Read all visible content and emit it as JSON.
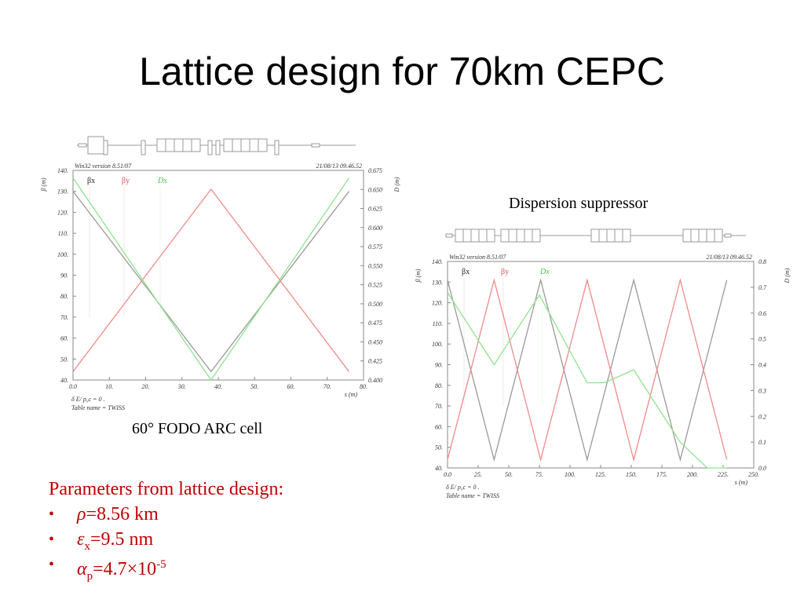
{
  "slide": {
    "title": "Lattice design for 70km CEPC"
  },
  "captions": {
    "left": "60° FODO ARC cell",
    "right": "Dispersion suppressor"
  },
  "parameters": {
    "heading": "Parameters from lattice design:",
    "items": [
      {
        "symbol": "ρ",
        "sub": "",
        "text": "=8.56 km",
        "sup": ""
      },
      {
        "symbol": "ε",
        "sub": "x",
        "text": "=9.5 nm",
        "sup": ""
      },
      {
        "symbol": "α",
        "sub": "p",
        "text": "=4.7×10",
        "sup": "-5"
      }
    ]
  },
  "colors": {
    "betax": "#9a9a9a",
    "betay": "#f08a8a",
    "dx": "#8fe38f",
    "params_text": "#c00000"
  },
  "chart_data": [
    {
      "type": "line",
      "program_label": "Win32 version 8.51/07",
      "date_label": "21/08/13  09.46.52",
      "xlabel": "s (m)",
      "ylabel_left": "β (m)",
      "ylabel_right": "D (m)",
      "footer": [
        "δ E/ p₀c  =  0 .",
        "Table name = TWISS"
      ],
      "xlim": [
        0,
        80
      ],
      "ylim": [
        40,
        140
      ],
      "ylim_right": [
        0.4,
        0.675
      ],
      "x_ticks": [
        "0.0",
        "10.",
        "20.",
        "30.",
        "40.",
        "50.",
        "60.",
        "70.",
        "80."
      ],
      "y_ticks": [
        "40.",
        "50.",
        "60.",
        "70.",
        "80.",
        "90.",
        "100.",
        "110.",
        "120.",
        "130.",
        "140."
      ],
      "y2_ticks": [
        "0.400",
        "0.425",
        "0.450",
        "0.475",
        "0.500",
        "0.525",
        "0.550",
        "0.575",
        "0.600",
        "0.625",
        "0.650",
        "0.675"
      ],
      "legend_position": "top-left",
      "series": [
        {
          "name": "βx",
          "axis": "left",
          "x": [
            0,
            38,
            76
          ],
          "y": [
            130,
            44,
            130
          ]
        },
        {
          "name": "βy",
          "axis": "left",
          "x": [
            0,
            38,
            76
          ],
          "y": [
            44,
            131,
            44
          ]
        },
        {
          "name": "Dx",
          "axis": "right",
          "x": [
            0,
            38,
            76
          ],
          "y": [
            0.665,
            0.4,
            0.665
          ]
        }
      ]
    },
    {
      "type": "line",
      "program_label": "Win32 version 8.51/07",
      "date_label": "21/08/13  09.46.52",
      "xlabel": "s (m)",
      "ylabel_left": "β (m)",
      "ylabel_right": "D (m)",
      "footer": [
        "δ E/ p₀c  =  0 .",
        "Table name = TWISS"
      ],
      "xlim": [
        0,
        250
      ],
      "ylim": [
        40,
        140
      ],
      "ylim_right": [
        0.0,
        0.8
      ],
      "x_ticks": [
        "0.0",
        "25.",
        "50.",
        "75.",
        "100.",
        "125.",
        "150.",
        "175.",
        "200.",
        "225.",
        "250."
      ],
      "y_ticks": [
        "40.",
        "50.",
        "60.",
        "70.",
        "80.",
        "90.",
        "100.",
        "110.",
        "120.",
        "130.",
        "140."
      ],
      "y2_ticks": [
        "0.0",
        "0.1",
        "0.2",
        "0.3",
        "0.4",
        "0.5",
        "0.6",
        "0.7",
        "0.8"
      ],
      "legend_position": "top-left",
      "series": [
        {
          "name": "βx",
          "axis": "left",
          "x": [
            0,
            38,
            76,
            114,
            152,
            190,
            228
          ],
          "y": [
            131,
            44,
            131,
            44,
            131,
            44,
            131
          ]
        },
        {
          "name": "βy",
          "axis": "left",
          "x": [
            0,
            38,
            76,
            114,
            152,
            190,
            228
          ],
          "y": [
            44,
            131,
            44,
            131,
            44,
            131,
            44
          ]
        },
        {
          "name": "Dx",
          "axis": "right",
          "x": [
            0,
            38,
            75,
            114,
            128,
            152,
            190,
            212,
            228
          ],
          "y": [
            0.68,
            0.4,
            0.67,
            0.33,
            0.33,
            0.38,
            0.1,
            0.0,
            0.0
          ]
        }
      ]
    }
  ]
}
